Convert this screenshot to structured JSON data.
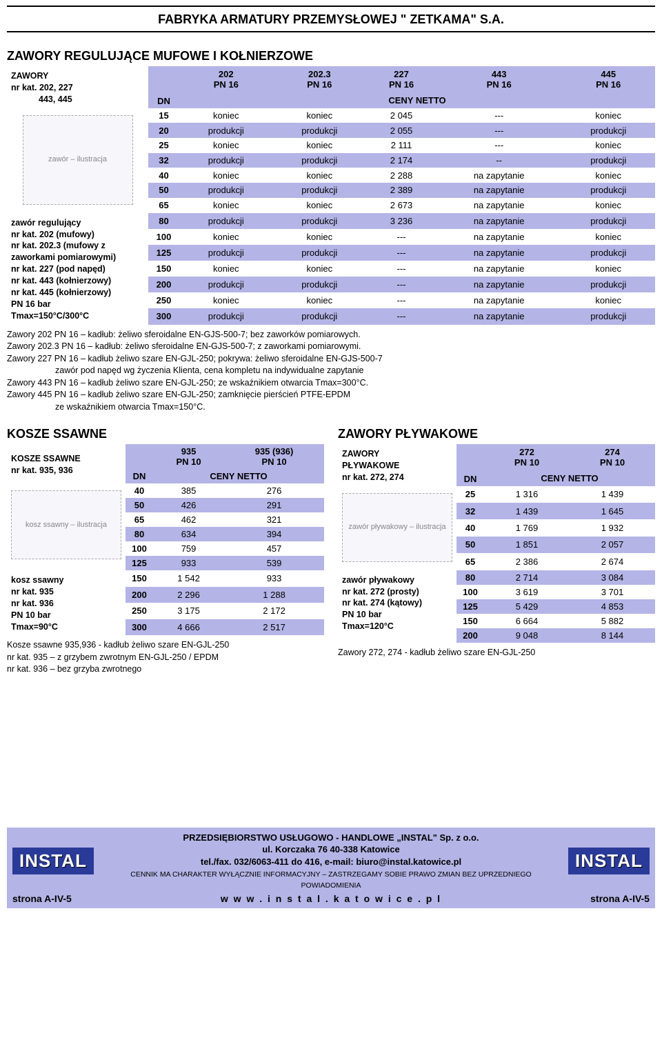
{
  "colors": {
    "band": "#b4b4e6",
    "bg": "#ffffff",
    "text": "#000000",
    "logo_bg": "#2a3a99"
  },
  "header_company": "FABRYKA ARMATURY PRZEMYSŁOWEJ \" ZETKAMA\" S.A.",
  "section1_title": "ZAWORY REGULUJĄCE MUFOWE I KOŁNIERZOWE",
  "t1_head_left1": "ZAWORY",
  "t1_head_left2": "nr kat. 202, 227",
  "t1_head_left3": "443, 445",
  "t1_dn": "DN",
  "t1_cols": [
    "202\nPN 16",
    "202.3\nPN 16",
    "227\nPN 16",
    "443\nPN 16",
    "445\nPN 16"
  ],
  "t1_ceny": "CENY NETTO",
  "t1_sidebar_img_alt": "zawór – ilustracja",
  "t1_sidebar_text": [
    "zawór regulujący",
    "nr kat. 202 (mufowy)",
    "nr kat. 202.3 (mufowy z zaworkami pomiarowymi)",
    "nr kat. 227 (pod napęd)",
    "nr kat. 443 (kołnierzowy)",
    "nr kat. 445 (kołnierzowy)",
    "PN 16 bar",
    "Tmax=150°C/300°C"
  ],
  "t1_rows": [
    {
      "dn": "15",
      "c": [
        "koniec",
        "koniec",
        "2 045",
        "---",
        "koniec"
      ]
    },
    {
      "dn": "20",
      "c": [
        "produkcji",
        "produkcji",
        "2 055",
        "---",
        "produkcji"
      ]
    },
    {
      "dn": "25",
      "c": [
        "koniec",
        "koniec",
        "2 111",
        "---",
        "koniec"
      ]
    },
    {
      "dn": "32",
      "c": [
        "produkcji",
        "produkcji",
        "2 174",
        "--",
        "produkcji"
      ]
    },
    {
      "dn": "40",
      "c": [
        "koniec",
        "koniec",
        "2 288",
        "na zapytanie",
        "koniec"
      ]
    },
    {
      "dn": "50",
      "c": [
        "produkcji",
        "produkcji",
        "2 389",
        "na zapytanie",
        "produkcji"
      ]
    },
    {
      "dn": "65",
      "c": [
        "koniec",
        "koniec",
        "2 673",
        "na zapytanie",
        "koniec"
      ]
    },
    {
      "dn": "80",
      "c": [
        "produkcji",
        "produkcji",
        "3 236",
        "na zapytanie",
        "produkcji"
      ]
    },
    {
      "dn": "100",
      "c": [
        "koniec",
        "koniec",
        "---",
        "na zapytanie",
        "koniec"
      ]
    },
    {
      "dn": "125",
      "c": [
        "produkcji",
        "produkcji",
        "---",
        "na zapytanie",
        "produkcji"
      ]
    },
    {
      "dn": "150",
      "c": [
        "koniec",
        "koniec",
        "---",
        "na zapytanie",
        "koniec"
      ]
    },
    {
      "dn": "200",
      "c": [
        "produkcji",
        "produkcji",
        "---",
        "na zapytanie",
        "produkcji"
      ]
    },
    {
      "dn": "250",
      "c": [
        "koniec",
        "koniec",
        "---",
        "na zapytanie",
        "koniec"
      ]
    },
    {
      "dn": "300",
      "c": [
        "produkcji",
        "produkcji",
        "---",
        "na zapytanie",
        "produkcji"
      ]
    }
  ],
  "t1_notes": [
    "Zawory 202 PN 16 – kadłub: żeliwo sferoidalne EN-GJS-500-7; bez zaworków pomiarowych.",
    "Zawory 202.3 PN 16 – kadłub: żeliwo sferoidalne EN-GJS-500-7; z zaworkami pomiarowymi.",
    "Zawory 227 PN 16 – kadłub żeliwo szare EN-GJL-250; pokrywa: żeliwo sferoidalne EN-GJS-500-7",
    "zawór pod napęd wg życzenia Klienta, cena kompletu na indywidualne zapytanie",
    "Zawory 443 PN 16 – kadłub żeliwo szare EN-GJL-250; ze wskaźnikiem otwarcia Tmax=300°C.",
    "Zawory 445 PN 16 – kadłub żeliwo szare EN-GJL-250; zamknięcie pierścień PTFE-EPDM",
    "ze wskaźnikiem otwarcia Tmax=150°C."
  ],
  "t2_title": "KOSZE SSAWNE",
  "t2_head_left1": "KOSZE SSAWNE",
  "t2_head_left2": "nr kat. 935, 936",
  "t2_dn": "DN",
  "t2_cols": [
    "935\nPN 10",
    "935 (936)\nPN 10"
  ],
  "t2_ceny": "CENY NETTO",
  "t2_sidebar_img_alt": "kosz ssawny – ilustracja",
  "t2_sidebar_text": [
    "kosz ssawny",
    "nr kat. 935",
    "nr kat. 936",
    "PN 10 bar",
    "Tmax=90°C"
  ],
  "t2_rows": [
    {
      "dn": "40",
      "c": [
        "385",
        "276"
      ]
    },
    {
      "dn": "50",
      "c": [
        "426",
        "291"
      ]
    },
    {
      "dn": "65",
      "c": [
        "462",
        "321"
      ]
    },
    {
      "dn": "80",
      "c": [
        "634",
        "394"
      ]
    },
    {
      "dn": "100",
      "c": [
        "759",
        "457"
      ]
    },
    {
      "dn": "125",
      "c": [
        "933",
        "539"
      ]
    },
    {
      "dn": "150",
      "c": [
        "1 542",
        "933"
      ]
    },
    {
      "dn": "200",
      "c": [
        "2 296",
        "1 288"
      ]
    },
    {
      "dn": "250",
      "c": [
        "3 175",
        "2 172"
      ]
    },
    {
      "dn": "300",
      "c": [
        "4 666",
        "2 517"
      ]
    }
  ],
  "t2_notes": [
    "Kosze ssawne 935,936 - kadłub żeliwo szare EN-GJL-250",
    "nr kat. 935 – z grzybem zwrotnym EN-GJL-250 / EPDM",
    "nr kat. 936 – bez grzyba zwrotnego"
  ],
  "t3_title": "ZAWORY PŁYWAKOWE",
  "t3_head_left1": "ZAWORY",
  "t3_head_left2": "PŁYWAKOWE",
  "t3_head_left3": "nr kat. 272, 274",
  "t3_dn": "DN",
  "t3_cols": [
    "272\nPN 10",
    "274\nPN 10"
  ],
  "t3_ceny": "CENY NETTO",
  "t3_sidebar_img_alt": "zawór pływakowy – ilustracja",
  "t3_sidebar_text": [
    "zawór pływakowy",
    "nr kat. 272 (prosty)",
    "nr kat. 274 (kątowy)",
    "PN 10 bar",
    "Tmax=120°C"
  ],
  "t3_rows": [
    {
      "dn": "25",
      "c": [
        "1 316",
        "1 439"
      ]
    },
    {
      "dn": "32",
      "c": [
        "1 439",
        "1 645"
      ]
    },
    {
      "dn": "40",
      "c": [
        "1 769",
        "1 932"
      ]
    },
    {
      "dn": "50",
      "c": [
        "1 851",
        "2 057"
      ]
    },
    {
      "dn": "65",
      "c": [
        "2 386",
        "2 674"
      ]
    },
    {
      "dn": "80",
      "c": [
        "2 714",
        "3 084"
      ]
    },
    {
      "dn": "100",
      "c": [
        "3 619",
        "3 701"
      ]
    },
    {
      "dn": "125",
      "c": [
        "5 429",
        "4 853"
      ]
    },
    {
      "dn": "150",
      "c": [
        "6 664",
        "5 882"
      ]
    },
    {
      "dn": "200",
      "c": [
        "9 048",
        "8 144"
      ]
    }
  ],
  "t3_notes": [
    "Zawory 272, 274 - kadłub żeliwo szare EN-GJL-250"
  ],
  "footer": {
    "logo": "INSTAL",
    "line1": "PRZEDSIĘBIORSTWO USŁUGOWO - HANDLOWE „INSTAL\" Sp. z o.o.",
    "line2": "ul. Korczaka 76    40-338 Katowice",
    "line3": "tel./fax. 032/6063-411 do 416,  e-mail: biuro@instal.katowice.pl",
    "line4": "CENNIK MA CHARAKTER WYŁĄCZNIE INFORMACYJNY – ZASTRZEGAMY SOBIE PRAWO ZMIAN BEZ UPRZEDNIEGO POWIADOMIENIA",
    "page_left": "strona A-IV-5",
    "url": "w w w . i n s t a l . k a t o w i c e . p l",
    "page_right": "strona A-IV-5"
  }
}
